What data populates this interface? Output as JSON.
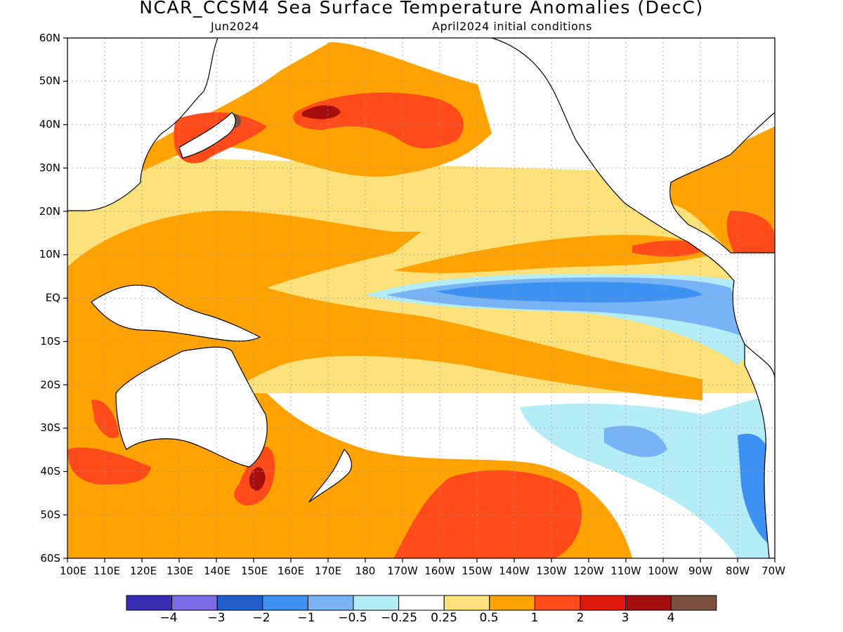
{
  "title": "NCAR_CCSM4 Sea Surface Temperature Anomalies (DecC)",
  "subtitle_left": "Jun2024",
  "subtitle_right": "April2024 initial conditions",
  "map": {
    "type": "filled-contour-map",
    "region": "Pacific Ocean",
    "lon_range": [
      100,
      290
    ],
    "lat_range": [
      -60,
      60
    ],
    "grid": true,
    "ocean_background_color": "#ffffff"
  },
  "y_ticks": [
    "60N",
    "50N",
    "40N",
    "30N",
    "20N",
    "10N",
    "EQ",
    "10S",
    "20S",
    "30S",
    "40S",
    "50S",
    "60S"
  ],
  "x_ticks": [
    "100E",
    "110E",
    "120E",
    "130E",
    "140E",
    "150E",
    "160E",
    "170E",
    "180",
    "170W",
    "160W",
    "150W",
    "140W",
    "130W",
    "120W",
    "110W",
    "100W",
    "90W",
    "80W",
    "70W"
  ],
  "colorbar": {
    "colors": [
      "#3a2bb4",
      "#7b6be6",
      "#1e5fcc",
      "#3d91f0",
      "#78b4f5",
      "#b4ecf8",
      "#ffffff",
      "#fde27c",
      "#ffa202",
      "#ff4a1a",
      "#e01b0b",
      "#a50f0f",
      "#7a5040"
    ],
    "labels": [
      "−4",
      "−3",
      "−2",
      "−1",
      "−0.5",
      "−0.25",
      "0.25",
      "0.5",
      "1",
      "2",
      "3",
      "4"
    ]
  }
}
